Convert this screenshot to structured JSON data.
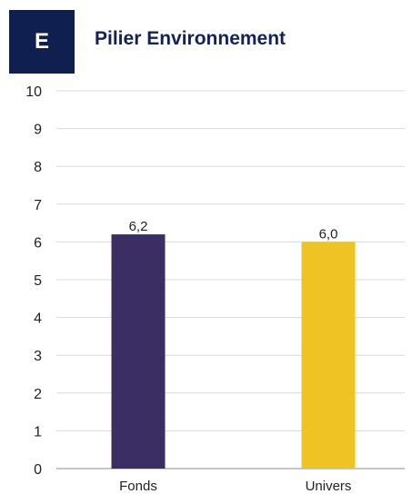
{
  "header": {
    "badge_letter": "E",
    "title": "Pilier Environnement"
  },
  "colors": {
    "badge_bg": "#0f1f4f",
    "title": "#13235a",
    "fonds": "#3b2e63",
    "univers": "#f0c324",
    "grid": "#d9d9d9"
  },
  "chart_data": {
    "type": "bar",
    "title": "",
    "xlabel": "",
    "ylabel": "",
    "categories": [
      "Fonds",
      "Univers"
    ],
    "values": [
      6.2,
      6.0
    ],
    "value_labels": [
      "6,2",
      "6,0"
    ],
    "yticks": [
      "0",
      "1",
      "2",
      "3",
      "4",
      "5",
      "6",
      "7",
      "8",
      "9",
      "10"
    ],
    "ylim": [
      0,
      10
    ],
    "grid": true,
    "legend": "none"
  }
}
